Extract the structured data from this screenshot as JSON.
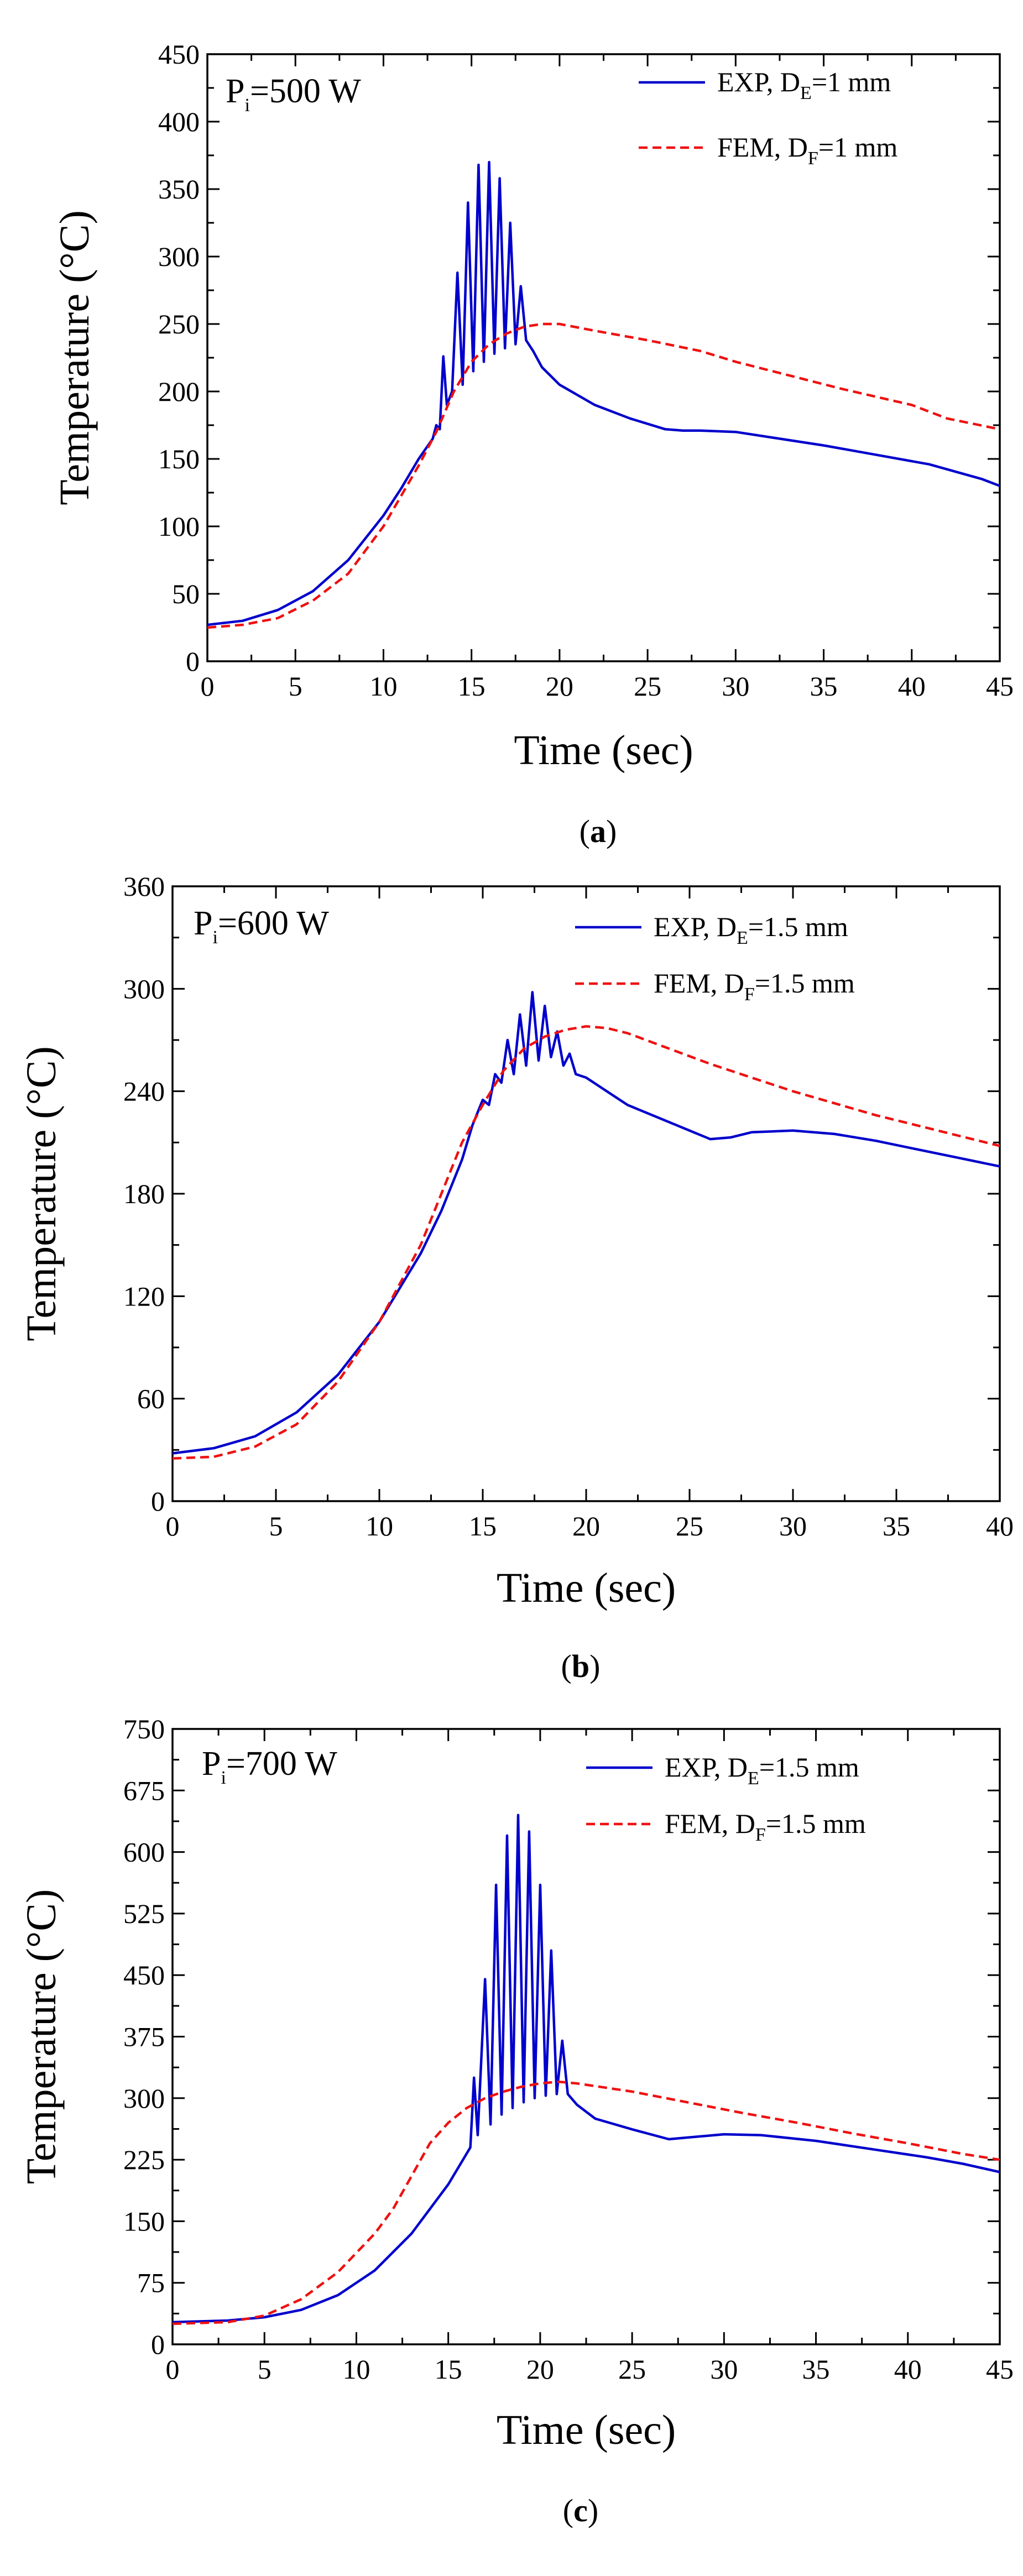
{
  "chart_data": [
    {
      "type": "line",
      "panel_label": "a",
      "annotation": {
        "symbol": "P",
        "subscript": "i",
        "value": "=500 W"
      },
      "xlabel": "Time (sec)",
      "ylabel": "Temperature (°C)",
      "xlim": [
        0,
        45
      ],
      "ylim": [
        0,
        450
      ],
      "xticks": [
        0,
        5,
        10,
        15,
        20,
        25,
        30,
        35,
        40,
        45
      ],
      "yticks": [
        0,
        50,
        100,
        150,
        200,
        250,
        300,
        350,
        400,
        450
      ],
      "legend_position": "top-right",
      "series": [
        {
          "name": "EXP, D_E=1 mm",
          "legend": {
            "prefix": "EXP, D",
            "subscript": "E",
            "suffix": "=1 mm"
          },
          "style": "solid",
          "color": "#0000cc",
          "points": [
            [
              0,
              27
            ],
            [
              2,
              30
            ],
            [
              4,
              38
            ],
            [
              6,
              52
            ],
            [
              8,
              75
            ],
            [
              10,
              108
            ],
            [
              11,
              128
            ],
            [
              12,
              150
            ],
            [
              12.8,
              165
            ],
            [
              13,
              175
            ],
            [
              13.2,
              172
            ],
            [
              13.4,
              226
            ],
            [
              13.6,
              190
            ],
            [
              13.9,
              200
            ],
            [
              14.2,
              288
            ],
            [
              14.5,
              205
            ],
            [
              14.8,
              340
            ],
            [
              15.1,
              215
            ],
            [
              15.4,
              368
            ],
            [
              15.7,
              222
            ],
            [
              16,
              370
            ],
            [
              16.3,
              228
            ],
            [
              16.6,
              358
            ],
            [
              16.9,
              232
            ],
            [
              17.2,
              325
            ],
            [
              17.5,
              235
            ],
            [
              17.8,
              278
            ],
            [
              18.1,
              238
            ],
            [
              18.5,
              230
            ],
            [
              19,
              218
            ],
            [
              20,
              205
            ],
            [
              22,
              190
            ],
            [
              24,
              180
            ],
            [
              26,
              172
            ],
            [
              27,
              171
            ],
            [
              28,
              171
            ],
            [
              30,
              170
            ],
            [
              32,
              166
            ],
            [
              35,
              160
            ],
            [
              38,
              153
            ],
            [
              41,
              146
            ],
            [
              44,
              135
            ],
            [
              45,
              130
            ]
          ]
        },
        {
          "name": "FEM, D_F=1 mm",
          "legend": {
            "prefix": "FEM, D",
            "subscript": "F",
            "suffix": "=1 mm"
          },
          "style": "dashed",
          "color": "#ee1111",
          "points": [
            [
              0,
              25
            ],
            [
              2,
              27
            ],
            [
              4,
              32
            ],
            [
              6,
              45
            ],
            [
              8,
              65
            ],
            [
              10,
              100
            ],
            [
              12,
              145
            ],
            [
              13,
              170
            ],
            [
              14,
              200
            ],
            [
              15,
              222
            ],
            [
              16,
              235
            ],
            [
              17,
              243
            ],
            [
              18,
              248
            ],
            [
              19,
              250
            ],
            [
              20,
              250
            ],
            [
              22,
              245
            ],
            [
              25,
              238
            ],
            [
              28,
              230
            ],
            [
              30,
              222
            ],
            [
              33,
              212
            ],
            [
              36,
              202
            ],
            [
              40,
              190
            ],
            [
              42,
              180
            ],
            [
              45,
              172
            ]
          ]
        }
      ]
    },
    {
      "type": "line",
      "panel_label": "b",
      "annotation": {
        "symbol": "P",
        "subscript": "i",
        "value": "=600 W"
      },
      "xlabel": "Time (sec)",
      "ylabel": "Temperature (°C)",
      "xlim": [
        0,
        40
      ],
      "ylim": [
        0,
        360
      ],
      "xticks": [
        0,
        5,
        10,
        15,
        20,
        25,
        30,
        35,
        40
      ],
      "yticks": [
        0,
        60,
        120,
        180,
        240,
        300,
        360
      ],
      "legend_position": "top-right",
      "series": [
        {
          "name": "EXP, D_E=1.5 mm",
          "legend": {
            "prefix": "EXP, D",
            "subscript": "E",
            "suffix": "=1.5 mm"
          },
          "style": "solid",
          "color": "#0000cc",
          "points": [
            [
              0,
              28
            ],
            [
              2,
              31
            ],
            [
              4,
              38
            ],
            [
              6,
              52
            ],
            [
              8,
              74
            ],
            [
              10,
              105
            ],
            [
              12,
              145
            ],
            [
              13,
              170
            ],
            [
              14,
              200
            ],
            [
              14.5,
              220
            ],
            [
              15,
              235
            ],
            [
              15.3,
              232
            ],
            [
              15.6,
              250
            ],
            [
              15.9,
              245
            ],
            [
              16.2,
              270
            ],
            [
              16.5,
              250
            ],
            [
              16.8,
              285
            ],
            [
              17.1,
              255
            ],
            [
              17.4,
              298
            ],
            [
              17.7,
              258
            ],
            [
              18,
              290
            ],
            [
              18.3,
              260
            ],
            [
              18.6,
              275
            ],
            [
              18.9,
              255
            ],
            [
              19.2,
              262
            ],
            [
              19.5,
              250
            ],
            [
              20,
              248
            ],
            [
              21,
              240
            ],
            [
              22,
              232
            ],
            [
              24,
              222
            ],
            [
              26,
              212
            ],
            [
              27,
              213
            ],
            [
              28,
              216
            ],
            [
              30,
              217
            ],
            [
              32,
              215
            ],
            [
              34,
              211
            ],
            [
              36,
              206
            ],
            [
              38,
              201
            ],
            [
              40,
              196
            ]
          ]
        },
        {
          "name": "FEM, D_F=1.5 mm",
          "legend": {
            "prefix": "FEM, D",
            "subscript": "F",
            "suffix": "=1.5 mm"
          },
          "style": "dashed",
          "color": "#ee1111",
          "points": [
            [
              0,
              25
            ],
            [
              2,
              26
            ],
            [
              4,
              32
            ],
            [
              6,
              45
            ],
            [
              8,
              70
            ],
            [
              10,
              105
            ],
            [
              12,
              150
            ],
            [
              13,
              180
            ],
            [
              14,
              210
            ],
            [
              15,
              232
            ],
            [
              16,
              252
            ],
            [
              17,
              265
            ],
            [
              18,
              272
            ],
            [
              19,
              276
            ],
            [
              20,
              278
            ],
            [
              21,
              277
            ],
            [
              22,
              274
            ],
            [
              24,
              265
            ],
            [
              26,
              256
            ],
            [
              28,
              248
            ],
            [
              30,
              240
            ],
            [
              32,
              233
            ],
            [
              34,
              226
            ],
            [
              36,
              220
            ],
            [
              38,
              214
            ],
            [
              40,
              208
            ]
          ]
        }
      ]
    },
    {
      "type": "line",
      "panel_label": "c",
      "annotation": {
        "symbol": "P",
        "subscript": "i",
        "value": "=700 W"
      },
      "xlabel": "Time (sec)",
      "ylabel": "Temperature (°C)",
      "xlim": [
        0,
        45
      ],
      "ylim": [
        0,
        750
      ],
      "xticks": [
        0,
        5,
        10,
        15,
        20,
        25,
        30,
        35,
        40,
        45
      ],
      "yticks": [
        0,
        75,
        150,
        225,
        300,
        375,
        450,
        525,
        600,
        675,
        750
      ],
      "legend_position": "top-right",
      "series": [
        {
          "name": "EXP, D_E=1.5 mm",
          "legend": {
            "prefix": "EXP, D",
            "subscript": "E",
            "suffix": "=1.5 mm"
          },
          "style": "solid",
          "color": "#0000cc",
          "points": [
            [
              0,
              27
            ],
            [
              3,
              29
            ],
            [
              5,
              33
            ],
            [
              7,
              42
            ],
            [
              9,
              60
            ],
            [
              11,
              90
            ],
            [
              13,
              135
            ],
            [
              15,
              195
            ],
            [
              15.8,
              225
            ],
            [
              16.2,
              240
            ],
            [
              16.4,
              325
            ],
            [
              16.6,
              255
            ],
            [
              17,
              445
            ],
            [
              17.3,
              268
            ],
            [
              17.6,
              560
            ],
            [
              17.9,
              280
            ],
            [
              18.2,
              620
            ],
            [
              18.5,
              288
            ],
            [
              18.8,
              645
            ],
            [
              19.1,
              295
            ],
            [
              19.4,
              625
            ],
            [
              19.7,
              300
            ],
            [
              20,
              560
            ],
            [
              20.3,
              303
            ],
            [
              20.6,
              480
            ],
            [
              20.9,
              305
            ],
            [
              21.2,
              370
            ],
            [
              21.5,
              305
            ],
            [
              22,
              292
            ],
            [
              23,
              275
            ],
            [
              25,
              262
            ],
            [
              27,
              250
            ],
            [
              28,
              252
            ],
            [
              30,
              256
            ],
            [
              32,
              255
            ],
            [
              35,
              248
            ],
            [
              38,
              238
            ],
            [
              41,
              228
            ],
            [
              43,
              220
            ],
            [
              45,
              210
            ]
          ]
        },
        {
          "name": "FEM, D_F=1.5 mm",
          "legend": {
            "prefix": "FEM, D",
            "subscript": "F",
            "suffix": "=1.5 mm"
          },
          "style": "dashed",
          "color": "#ee1111",
          "points": [
            [
              0,
              25
            ],
            [
              3,
              27
            ],
            [
              5,
              35
            ],
            [
              7,
              55
            ],
            [
              9,
              88
            ],
            [
              11,
              135
            ],
            [
              12,
              165
            ],
            [
              13,
              205
            ],
            [
              14,
              245
            ],
            [
              15,
              270
            ],
            [
              16,
              288
            ],
            [
              17,
              300
            ],
            [
              18,
              308
            ],
            [
              19,
              314
            ],
            [
              20,
              318
            ],
            [
              21,
              320
            ],
            [
              22,
              318
            ],
            [
              25,
              308
            ],
            [
              28,
              295
            ],
            [
              31,
              282
            ],
            [
              34,
              270
            ],
            [
              37,
              257
            ],
            [
              40,
              245
            ],
            [
              43,
              232
            ],
            [
              45,
              225
            ]
          ]
        }
      ]
    }
  ]
}
